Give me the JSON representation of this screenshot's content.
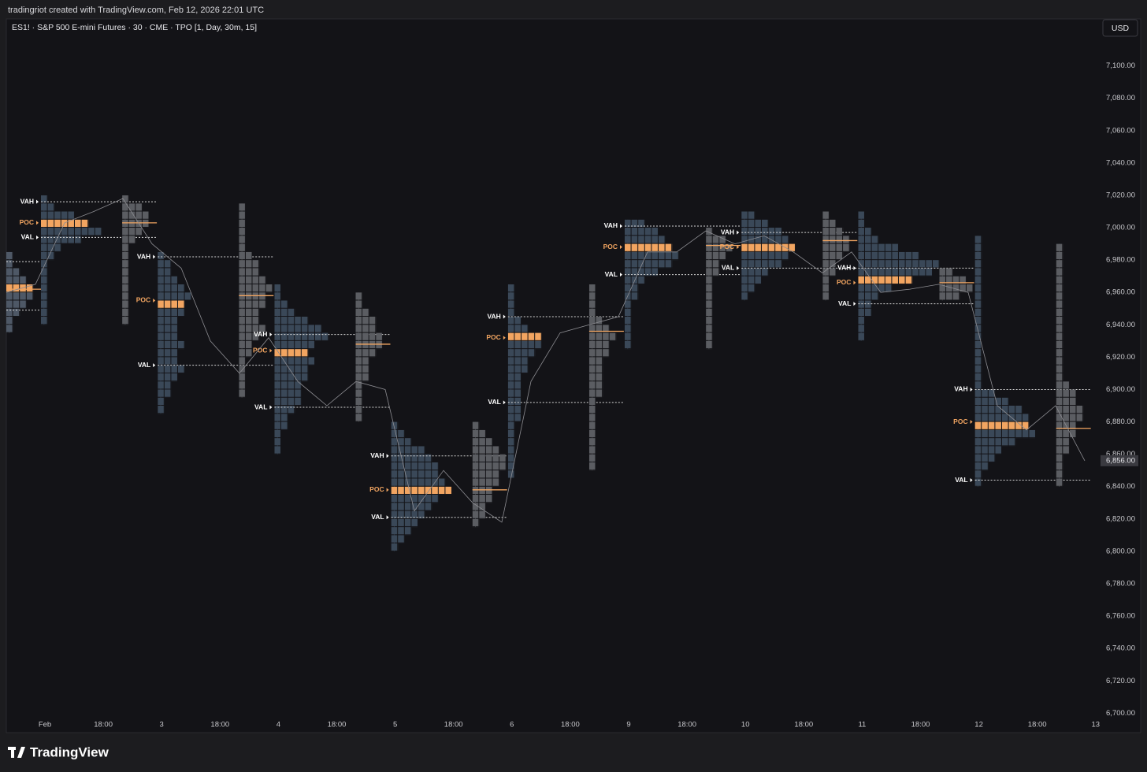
{
  "header": {
    "credit": "tradingriot created with TradingView.com, Feb 12, 2026 22:01 UTC",
    "brand": "TradingView"
  },
  "chart_data": {
    "type": "tpo",
    "title": "ES1! · S&P 500 E-mini Futures · 30 · CME · TPO [1, Day, 30m, 15]",
    "currency": "USD",
    "ylim": [
      6688,
      7129
    ],
    "yticks": [
      {
        "value": 6700,
        "label": "6,700.00"
      },
      {
        "value": 6720,
        "label": "6,720.00"
      },
      {
        "value": 6740,
        "label": "6,740.00"
      },
      {
        "value": 6760,
        "label": "6,760.00"
      },
      {
        "value": 6780,
        "label": "6,780.00"
      },
      {
        "value": 6800,
        "label": "6,800.00"
      },
      {
        "value": 6820,
        "label": "6,820.00"
      },
      {
        "value": 6840,
        "label": "6,840.00"
      },
      {
        "value": 6860,
        "label": "6,860.00"
      },
      {
        "value": 6880,
        "label": "6,880.00"
      },
      {
        "value": 6900,
        "label": "6,900.00"
      },
      {
        "value": 6920,
        "label": "6,920.00"
      },
      {
        "value": 6940,
        "label": "6,940.00"
      },
      {
        "value": 6960,
        "label": "6,960.00"
      },
      {
        "value": 6980,
        "label": "6,980.00"
      },
      {
        "value": 7000,
        "label": "7,000.00"
      },
      {
        "value": 7020,
        "label": "7,020.00"
      },
      {
        "value": 7040,
        "label": "7,040.00"
      },
      {
        "value": 7060,
        "label": "7,060.00"
      },
      {
        "value": 7080,
        "label": "7,080.00"
      },
      {
        "value": 7100,
        "label": "7,100.00"
      }
    ],
    "categories": [
      "Feb",
      "18:00",
      "3",
      "18:00",
      "4",
      "18:00",
      "5",
      "18:00",
      "6",
      "18:00",
      "9",
      "18:00",
      "10",
      "18:00",
      "11",
      "18:00",
      "12",
      "18:00",
      "13"
    ],
    "labels": {
      "vah": "VAH",
      "poc": "POC",
      "val": "VAL"
    },
    "row_size": 5,
    "colors": {
      "main": "#3a4858",
      "overnight": "#5b5d62",
      "poc": "#f2a561",
      "line": "#8d8d92",
      "level": "#d6d6d6"
    },
    "sessions": [
      {
        "color": "#4e5866",
        "high": 6985,
        "low": 6935,
        "poc": 6962,
        "vah": 6979,
        "val": 6949,
        "profile": [
          1,
          1,
          2,
          3,
          4,
          4,
          3,
          2,
          1,
          1
        ]
      },
      {
        "color": "#3a4858",
        "high": 7020,
        "low": 6940,
        "poc": 7003,
        "vah": 7016,
        "val": 6994,
        "profile": [
          1,
          2,
          5,
          7,
          9,
          6,
          3,
          2,
          1,
          1,
          1,
          1,
          1,
          1,
          1,
          1
        ]
      },
      {
        "color": "#5b5d62",
        "high": 7020,
        "low": 6940,
        "poc": 7003,
        "profile": [
          1,
          3,
          4,
          4,
          3,
          2,
          1,
          1,
          1,
          1,
          1,
          1,
          1,
          1,
          1,
          1
        ]
      },
      {
        "color": "#3a4858",
        "high": 6985,
        "low": 6885,
        "poc": 6955,
        "vah": 6982,
        "val": 6915,
        "profile": [
          1,
          2,
          2,
          3,
          4,
          5,
          4,
          4,
          3,
          3,
          3,
          4,
          3,
          3,
          4,
          3,
          2,
          2,
          1,
          1
        ]
      },
      {
        "color": "#5b5d62",
        "high": 7015,
        "low": 6895,
        "poc": 6958,
        "profile": [
          1,
          1,
          1,
          1,
          1,
          1,
          2,
          3,
          3,
          4,
          5,
          4,
          4,
          3,
          3,
          4,
          3,
          2,
          2,
          1,
          1,
          1,
          1,
          1
        ]
      },
      {
        "color": "#3a4858",
        "high": 6965,
        "low": 6860,
        "poc": 6924,
        "vah": 6934,
        "val": 6889,
        "profile": [
          1,
          1,
          2,
          3,
          5,
          7,
          8,
          6,
          5,
          6,
          5,
          5,
          4,
          4,
          4,
          3,
          2,
          2,
          1,
          1,
          1
        ]
      },
      {
        "color": "#5b5d62",
        "high": 6960,
        "low": 6880,
        "poc": 6928,
        "profile": [
          1,
          1,
          2,
          3,
          3,
          4,
          4,
          3,
          2,
          2,
          2,
          1,
          1,
          1,
          1,
          1
        ]
      },
      {
        "color": "#3a4858",
        "high": 6880,
        "low": 6800,
        "poc": 6838,
        "vah": 6859,
        "val": 6821,
        "profile": [
          1,
          2,
          3,
          5,
          6,
          7,
          7,
          8,
          9,
          7,
          6,
          5,
          4,
          3,
          2,
          1
        ]
      },
      {
        "color": "#5b5d62",
        "high": 6880,
        "low": 6815,
        "poc": 6838,
        "profile": [
          1,
          2,
          3,
          4,
          5,
          5,
          4,
          4,
          3,
          3,
          2,
          2,
          1
        ]
      },
      {
        "color": "#3a4858",
        "high": 6965,
        "low": 6845,
        "poc": 6932,
        "vah": 6945,
        "val": 6892,
        "profile": [
          1,
          1,
          1,
          1,
          2,
          3,
          5,
          5,
          4,
          3,
          3,
          2,
          2,
          2,
          2,
          2,
          2,
          1,
          1,
          1,
          1,
          1,
          1,
          1
        ]
      },
      {
        "color": "#5b5d62",
        "high": 6965,
        "low": 6850,
        "poc": 6936,
        "profile": [
          1,
          1,
          1,
          1,
          2,
          3,
          4,
          3,
          3,
          2,
          2,
          2,
          2,
          2,
          1,
          1,
          1,
          1,
          1,
          1,
          1,
          1,
          1
        ]
      },
      {
        "color": "#3a4858",
        "high": 7005,
        "low": 6925,
        "poc": 6988,
        "vah": 7001,
        "val": 6971,
        "profile": [
          3,
          5,
          6,
          7,
          8,
          7,
          5,
          3,
          2,
          2,
          1,
          1,
          1,
          1,
          1,
          1
        ]
      },
      {
        "color": "#5b5d62",
        "high": 7000,
        "low": 6925,
        "poc": 6989,
        "profile": [
          1,
          3,
          4,
          3,
          2,
          2,
          1,
          1,
          1,
          1,
          1,
          1,
          1,
          1,
          1
        ]
      },
      {
        "color": "#3a4858",
        "high": 7010,
        "low": 6955,
        "poc": 6988,
        "vah": 6997,
        "val": 6975,
        "profile": [
          2,
          4,
          6,
          7,
          8,
          7,
          6,
          4,
          3,
          2,
          1
        ]
      },
      {
        "color": "#5b5d62",
        "high": 7010,
        "low": 6955,
        "poc": 6992,
        "profile": [
          1,
          2,
          3,
          4,
          4,
          3,
          2,
          2,
          1,
          1,
          1
        ]
      },
      {
        "color": "#3a4858",
        "high": 7010,
        "low": 6930,
        "poc": 6966,
        "vah": 6975,
        "val": 6953,
        "profile": [
          1,
          1,
          2,
          3,
          6,
          9,
          12,
          11,
          8,
          5,
          3,
          2,
          2,
          1,
          1,
          1
        ]
      },
      {
        "color": "#5b5d62",
        "high": 6975,
        "low": 6955,
        "poc": 6966,
        "profile": [
          2,
          4,
          5,
          3
        ]
      },
      {
        "color": "#3a4858",
        "high": 6995,
        "low": 6840,
        "poc": 6880,
        "vah": 6900,
        "val": 6844,
        "profile": [
          1,
          1,
          1,
          1,
          1,
          1,
          1,
          1,
          1,
          1,
          1,
          1,
          1,
          1,
          1,
          1,
          1,
          1,
          1,
          3,
          5,
          7,
          8,
          8,
          9,
          6,
          4,
          3,
          2,
          1,
          1
        ]
      },
      {
        "color": "#5b5d62",
        "high": 6990,
        "low": 6840,
        "poc": 6876,
        "profile": [
          1,
          1,
          1,
          1,
          1,
          1,
          1,
          1,
          1,
          1,
          1,
          1,
          1,
          1,
          1,
          1,
          1,
          2,
          3,
          3,
          4,
          4,
          3,
          3,
          2,
          2,
          1,
          1,
          1,
          1
        ]
      }
    ],
    "price": [
      6960,
      6965,
      7003,
      7010,
      7018,
      6990,
      6975,
      6930,
      6910,
      6932,
      6905,
      6890,
      6905,
      6900,
      6825,
      6850,
      6830,
      6818,
      6905,
      6935,
      6940,
      6945,
      6985,
      6985,
      6998,
      6990,
      6995,
      6985,
      6972,
      6985,
      6960,
      6962,
      6965,
      6960,
      6890,
      6875,
      6890,
      6856
    ],
    "last_price": {
      "value": 6856,
      "label": "6,856.00"
    }
  }
}
